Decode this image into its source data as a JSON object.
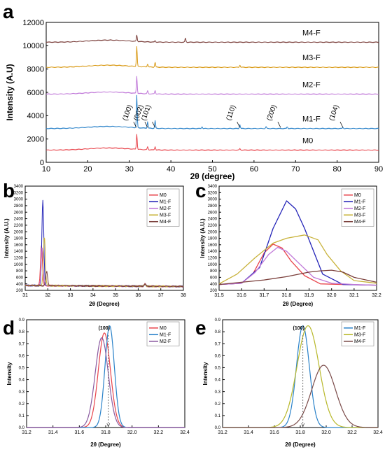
{
  "panel_letters": [
    "a",
    "b",
    "c",
    "d",
    "e"
  ],
  "chart_data": [
    {
      "panel": "a",
      "type": "line",
      "xlabel": "2θ (degree)",
      "ylabel": "Intensity (A.U)",
      "xlim": [
        10,
        90
      ],
      "ylim": [
        0,
        12000
      ],
      "xticks": [
        10,
        20,
        30,
        40,
        50,
        60,
        70,
        80,
        90
      ],
      "yticks": [
        0,
        2000,
        4000,
        6000,
        8000,
        10000,
        12000
      ],
      "grid": false,
      "series": [
        {
          "name": "M0",
          "color": "#e8434a",
          "baseline": 1050,
          "peaks": [
            [
              31.8,
              1300
            ],
            [
              34.4,
              250
            ],
            [
              36.2,
              280
            ],
            [
              56.6,
              120
            ]
          ]
        },
        {
          "name": "M1-F",
          "color": "#2a82c9",
          "baseline": 2900,
          "peaks": [
            [
              31.8,
              2750
            ],
            [
              34.4,
              550
            ],
            [
              36.2,
              650
            ],
            [
              47.5,
              150
            ],
            [
              56.6,
              330
            ],
            [
              62.9,
              150
            ],
            [
              68.0,
              150
            ],
            [
              81.4,
              100
            ]
          ]
        },
        {
          "name": "M2-F",
          "color": "#c078d8",
          "baseline": 5850,
          "peaks": [
            [
              31.8,
              1450
            ],
            [
              34.4,
              250
            ],
            [
              36.2,
              300
            ]
          ]
        },
        {
          "name": "M3-F",
          "color": "#d99a16",
          "baseline": 8150,
          "peaks": [
            [
              31.8,
              1700
            ],
            [
              34.4,
              260
            ],
            [
              36.2,
              420
            ],
            [
              56.6,
              200
            ]
          ]
        },
        {
          "name": "M4-F",
          "color": "#7a3e3a",
          "baseline": 10300,
          "peaks": [
            [
              31.8,
              550
            ],
            [
              36.2,
              120
            ],
            [
              43.5,
              350
            ]
          ]
        }
      ],
      "annotations": [
        {
          "text": "(100)",
          "x": 31.7
        },
        {
          "text": "(002)",
          "x": 34.4
        },
        {
          "text": "(101)",
          "x": 36.2
        },
        {
          "text": "(110)",
          "x": 56.6
        },
        {
          "text": "(200)",
          "x": 66.4
        },
        {
          "text": "(104)",
          "x": 81.4
        }
      ]
    },
    {
      "panel": "b",
      "type": "line",
      "xlabel": "2θ (Degree)",
      "ylabel": "Intensity (A.U.)",
      "xlim": [
        31,
        38
      ],
      "ylim": [
        200,
        3400
      ],
      "xticks": [
        31,
        32,
        33,
        34,
        35,
        36,
        37,
        38
      ],
      "yticks": [
        200,
        400,
        600,
        800,
        1000,
        1200,
        1400,
        1600,
        1800,
        2000,
        2200,
        2400,
        2600,
        2800,
        3000,
        3200,
        3400
      ],
      "legend": "top-right",
      "series": [
        {
          "name": "M0",
          "color": "#e8434a",
          "peak_x": 31.72,
          "peak_y": 1600
        },
        {
          "name": "M1-F",
          "color": "#2424b8",
          "peak_x": 31.78,
          "peak_y": 2950
        },
        {
          "name": "M2-F",
          "color": "#c078d8",
          "peak_x": 31.75,
          "peak_y": 1550
        },
        {
          "name": "M3-F",
          "color": "#c8b23a",
          "peak_x": 31.85,
          "peak_y": 1850
        },
        {
          "name": "M4-F",
          "color": "#7a3e3a",
          "peak_x": 31.95,
          "peak_y": 780
        }
      ],
      "baseline": 350,
      "secondary_peak": {
        "x": 36.3,
        "y": 420
      }
    },
    {
      "panel": "c",
      "type": "line",
      "xlabel": "2θ (Degree)",
      "ylabel": "Intensity (A.U.)",
      "xlim": [
        31.5,
        32.2
      ],
      "ylim": [
        200,
        3400
      ],
      "xticks": [
        31.5,
        31.6,
        31.7,
        31.8,
        31.9,
        32.0,
        32.1,
        32.2
      ],
      "yticks": [
        200,
        400,
        600,
        800,
        1000,
        1200,
        1400,
        1600,
        1800,
        2000,
        2200,
        2400,
        2600,
        2800,
        3000,
        3200,
        3400
      ],
      "legend": "top-right",
      "series": [
        {
          "name": "M0",
          "color": "#e8434a",
          "x": [
            31.5,
            31.6,
            31.65,
            31.7,
            31.74,
            31.78,
            31.82,
            31.88,
            31.95,
            32.05,
            32.2
          ],
          "y": [
            380,
            420,
            700,
            1350,
            1620,
            1500,
            1100,
            650,
            400,
            380,
            360
          ]
        },
        {
          "name": "M1-F",
          "color": "#2424b8",
          "x": [
            31.5,
            31.6,
            31.68,
            31.74,
            31.8,
            31.84,
            31.88,
            31.92,
            31.96,
            32.05,
            32.2
          ],
          "y": [
            380,
            420,
            900,
            2100,
            2950,
            2700,
            2100,
            1400,
            700,
            380,
            360
          ]
        },
        {
          "name": "M2-F",
          "color": "#c078d8",
          "x": [
            31.5,
            31.6,
            31.66,
            31.72,
            31.76,
            31.8,
            31.86,
            31.92,
            32.0,
            32.1,
            32.2
          ],
          "y": [
            380,
            420,
            750,
            1300,
            1520,
            1400,
            1000,
            600,
            420,
            380,
            360
          ]
        },
        {
          "name": "M3-F",
          "color": "#c8b23a",
          "x": [
            31.5,
            31.58,
            31.66,
            31.74,
            31.8,
            31.88,
            31.94,
            31.98,
            32.04,
            32.1,
            32.2
          ],
          "y": [
            400,
            700,
            1200,
            1650,
            1800,
            1900,
            1750,
            1300,
            800,
            500,
            420
          ]
        },
        {
          "name": "M4-F",
          "color": "#7a3e3a",
          "x": [
            31.5,
            31.6,
            31.7,
            31.8,
            31.9,
            31.95,
            32.0,
            32.05,
            32.1,
            32.2
          ],
          "y": [
            380,
            450,
            520,
            620,
            760,
            800,
            820,
            760,
            600,
            450
          ]
        }
      ]
    },
    {
      "panel": "d",
      "type": "line",
      "xlabel": "2θ (Degree)",
      "ylabel": "Intensity",
      "xlim": [
        31.2,
        32.4
      ],
      "ylim": [
        0,
        0.9
      ],
      "xticks": [
        31.2,
        31.4,
        31.6,
        31.8,
        32.0,
        32.2,
        32.4
      ],
      "yticks": [
        0.0,
        0.1,
        0.2,
        0.3,
        0.4,
        0.5,
        0.6,
        0.7,
        0.8,
        0.9
      ],
      "legend": "top-right",
      "annotation": "(100)",
      "ref_x": 31.82,
      "series": [
        {
          "name": "M0",
          "color": "#e8434a",
          "center": 31.79,
          "amplitude": 0.79,
          "sigma": 0.065
        },
        {
          "name": "M1-F",
          "color": "#2a82c9",
          "center": 31.83,
          "amplitude": 0.85,
          "sigma": 0.05
        },
        {
          "name": "M2-F",
          "color": "#8a5aa0",
          "center": 31.77,
          "amplitude": 0.75,
          "sigma": 0.07
        }
      ]
    },
    {
      "panel": "e",
      "type": "line",
      "xlabel": "2θ (Degree)",
      "ylabel": "Intensity",
      "xlim": [
        31.2,
        32.4
      ],
      "ylim": [
        0,
        0.9
      ],
      "xticks": [
        31.2,
        31.4,
        31.6,
        31.8,
        32.0,
        32.2,
        32.4
      ],
      "yticks": [
        0.0,
        0.1,
        0.2,
        0.3,
        0.4,
        0.5,
        0.6,
        0.7,
        0.8,
        0.9
      ],
      "legend": "top-right",
      "annotation": "(100)",
      "ref_x": 31.82,
      "series": [
        {
          "name": "M1-F",
          "color": "#2a82c9",
          "center": 31.82,
          "amplitude": 0.85,
          "sigma": 0.07
        },
        {
          "name": "M3-F",
          "color": "#b8b82a",
          "center": 31.86,
          "amplitude": 0.85,
          "sigma": 0.12
        },
        {
          "name": "M4-F",
          "color": "#7a4a48",
          "center": 31.98,
          "amplitude": 0.52,
          "sigma": 0.13
        }
      ]
    }
  ]
}
